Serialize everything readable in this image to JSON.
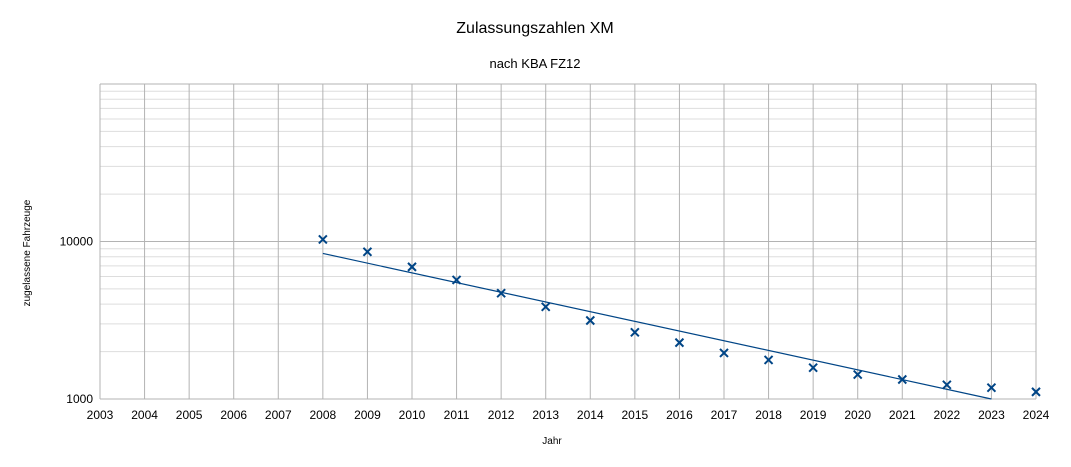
{
  "chart_data": {
    "type": "scatter",
    "title": "Zulassungszahlen XM",
    "subtitle": "nach KBA FZ12",
    "xlabel": "Jahr",
    "ylabel": "zugelassene Fahrzeuge",
    "y_scale": "log",
    "xlim": [
      2003,
      2024
    ],
    "ylim": [
      1000,
      100000
    ],
    "x_ticks": [
      "2003",
      "2004",
      "2005",
      "2006",
      "2007",
      "2008",
      "2009",
      "2010",
      "2011",
      "2012",
      "2013",
      "2014",
      "2015",
      "2016",
      "2017",
      "2018",
      "2019",
      "2020",
      "2021",
      "2022",
      "2023",
      "2024"
    ],
    "y_tick_labels": [
      "10000",
      "1000"
    ],
    "grid": true,
    "legend": "none",
    "marker": "x",
    "series_color": "#004586",
    "series": [
      {
        "x": [
          2008,
          2009,
          2010,
          2011,
          2012,
          2013,
          2014,
          2015,
          2016,
          2017,
          2018,
          2019,
          2020,
          2021,
          2022,
          2023,
          2024
        ],
        "y": [
          10300,
          8600,
          6900,
          5700,
          4700,
          3850,
          3150,
          2650,
          2280,
          1960,
          1770,
          1580,
          1430,
          1330,
          1230,
          1180,
          1110
        ]
      }
    ],
    "trendline": {
      "type": "exponential",
      "x": [
        2008,
        2023
      ],
      "y": [
        8400,
        1000
      ],
      "color": "#004586"
    }
  }
}
